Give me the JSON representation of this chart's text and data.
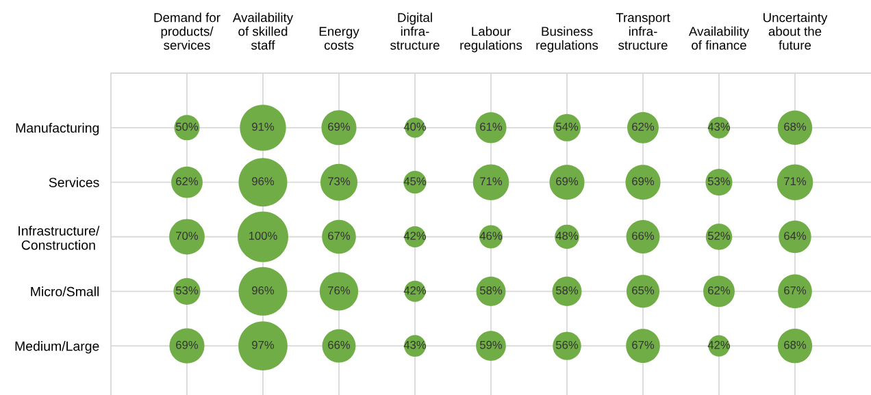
{
  "chart_data": {
    "type": "other",
    "categories": [
      "Demand for\nproducts/\nservices",
      "Availability\nof skilled\nstaff",
      "Energy\ncosts",
      "Digital\ninfra-\nstructure",
      "Labour\nregulations",
      "Business\nregulations",
      "Transport\ninfra-\nstructure",
      "Availability\nof finance",
      "Uncertainty\nabout the\nfuture"
    ],
    "y_categories": [
      "Manufacturing",
      "Services",
      "Infrastructure/\nConstruction",
      "Micro/Small",
      "Medium/Large"
    ],
    "series": [
      {
        "color": "#70ad47",
        "values": [
          50,
          91,
          69,
          40,
          61,
          54,
          62,
          43,
          68
        ],
        "value_labels": [
          "50%",
          "91%",
          "69%",
          "40%",
          "61%",
          "54%",
          "62%",
          "43%",
          "68%"
        ]
      },
      {
        "color": "#70ad47",
        "values": [
          62,
          96,
          73,
          45,
          71,
          69,
          69,
          53,
          71
        ],
        "value_labels": [
          "62%",
          "96%",
          "73%",
          "45%",
          "71%",
          "69%",
          "69%",
          "53%",
          "71%"
        ]
      },
      {
        "color": "#70ad47",
        "values": [
          70,
          100,
          67,
          42,
          46,
          48,
          66,
          52,
          64
        ],
        "value_labels": [
          "70%",
          "100%",
          "67%",
          "42%",
          "46%",
          "48%",
          "66%",
          "52%",
          "64%"
        ]
      },
      {
        "color": "#70ad47",
        "values": [
          53,
          96,
          76,
          42,
          58,
          58,
          65,
          62,
          67
        ],
        "value_labels": [
          "53%",
          "96%",
          "76%",
          "42%",
          "58%",
          "58%",
          "65%",
          "62%",
          "67%"
        ]
      },
      {
        "color": "#70ad47",
        "values": [
          69,
          97,
          66,
          43,
          59,
          56,
          67,
          42,
          68
        ],
        "value_labels": [
          "69%",
          "97%",
          "66%",
          "43%",
          "59%",
          "56%",
          "67%",
          "42%",
          "68%"
        ]
      }
    ]
  }
}
